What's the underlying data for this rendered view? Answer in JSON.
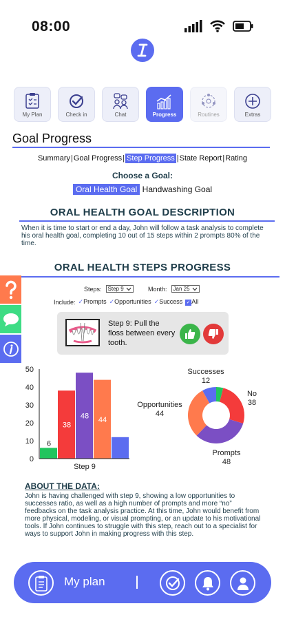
{
  "status": {
    "time": "08:00"
  },
  "tabs": [
    {
      "label": "My Plan",
      "icon": "clipboard-icon",
      "active": false
    },
    {
      "label": "Check in",
      "icon": "check-circle-icon",
      "active": false
    },
    {
      "label": "Chat",
      "icon": "chat-people-icon",
      "active": false
    },
    {
      "label": "Progress",
      "icon": "bar-chart-icon",
      "active": true
    },
    {
      "label": "Routines",
      "icon": "routine-cycle-icon",
      "active": false
    },
    {
      "label": "Extras",
      "icon": "plus-circle-icon",
      "active": false
    }
  ],
  "page_title": "Goal Progress",
  "subnav": {
    "items": [
      "Summary",
      "Goal Progress",
      "Step Progress",
      "State Report",
      "Rating"
    ],
    "active": "Step Progress"
  },
  "choose_goal": {
    "label": "Choose a Goal:",
    "goals": [
      "Oral Health Goal",
      "Handwashing Goal"
    ],
    "active": "Oral Health Goal"
  },
  "goal_description": {
    "heading": "ORAL HEALTH GOAL DESCRIPTION",
    "text": "When it is time to start or end a day, John will follow a task analysis to complete his oral health goal, completing 10 out of 15 steps within 2 prompts 80% of the time."
  },
  "steps_progress": {
    "heading": "ORAL HEALTH STEPS PROGRESS",
    "steps_label": "Steps:",
    "steps_value": "Step 9",
    "month_label": "Month:",
    "month_value": "Jan 25",
    "include_label": "Include:",
    "include_options": [
      "Prompts",
      "Opportunities",
      "Success",
      "All"
    ]
  },
  "step_card": {
    "text": "Step 9: Pull the floss between every tooth.",
    "image_icon": "teeth-floss-icon",
    "like_icon": "thumbs-up-icon",
    "dislike_icon": "thumbs-down-icon"
  },
  "chart_data": [
    {
      "type": "bar",
      "categories": [
        "Step 9"
      ],
      "xlabel": "Step 9",
      "ylim": [
        0,
        50
      ],
      "yticks": [
        0,
        10,
        20,
        30,
        40,
        50
      ],
      "grid": false,
      "series": [
        {
          "value": 6,
          "color": "#22c55e"
        },
        {
          "value": 38,
          "color": "#f43b3b"
        },
        {
          "value": 48,
          "color": "#7b4fc4"
        },
        {
          "value": 44,
          "color": "#ff7a4d"
        },
        {
          "value": 12,
          "color": "#5b6cf0"
        }
      ]
    },
    {
      "type": "pie",
      "donut": true,
      "slices": [
        {
          "label": "Successes",
          "value": 12,
          "color": "#5b6cf0"
        },
        {
          "label": "",
          "value": 6,
          "color": "#22c55e"
        },
        {
          "label": "No",
          "value": 38,
          "color": "#f43b3b"
        },
        {
          "label": "Prompts",
          "value": 48,
          "color": "#7b4fc4"
        },
        {
          "label": "Opportunities",
          "value": 44,
          "color": "#ff7a4d"
        }
      ]
    }
  ],
  "about": {
    "heading": "ABOUT THE DATA:",
    "text": "John is having challenged with step 9, showing a low opportunities to successes ratio, as well as a high number of prompts and more “no” feedbacks on the task analysis practice. At this time, John would benefit from more physical, modeling, or visual prompting, or an update to his motivational tools. If John continues to struggle with this step, reach out to a specialist for ways to support John in making progress with this step."
  },
  "side_tools": [
    {
      "icon": "question-icon",
      "color": "#ff7a4d"
    },
    {
      "icon": "chat-bubble-icon",
      "color": "#3ddc84"
    },
    {
      "icon": "info-icon",
      "color": "#5b6cf0"
    }
  ],
  "bottom_bar": {
    "label": "My plan",
    "icons": [
      "clipboard-icon",
      "check-circle-icon",
      "bell-icon",
      "user-icon"
    ]
  }
}
